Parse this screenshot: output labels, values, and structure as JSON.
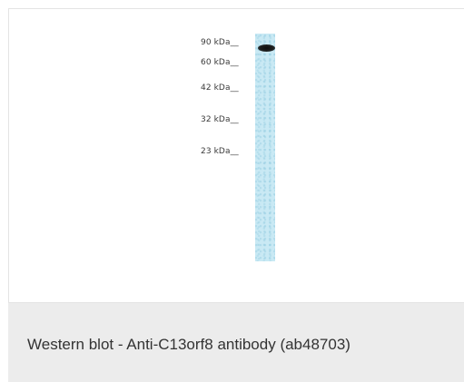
{
  "figure": {
    "markers": [
      {
        "label": "90 kDa__"
      },
      {
        "label": "60 kDa__"
      },
      {
        "label": "42 kDa__"
      },
      {
        "label": "32 kDa__"
      },
      {
        "label": "23 kDa__"
      }
    ]
  },
  "caption": {
    "text": "Western blot - Anti-C13orf8 antibody (ab48703)"
  },
  "colors": {
    "lane": "#c9e9f4",
    "band": "#111111",
    "caption_background": "#ececec"
  }
}
